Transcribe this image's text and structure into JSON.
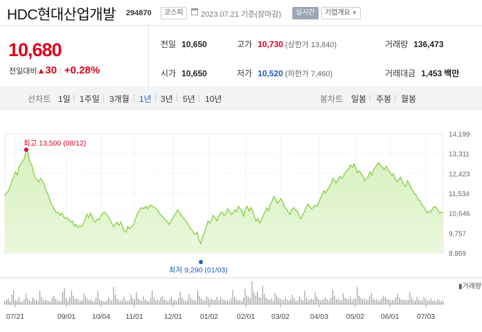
{
  "header": {
    "title": "HDC현대산업개발",
    "code": "294870",
    "market": "코스피",
    "date_text": "2023.07.21  기준(장마감)",
    "realtime_label": "실시간",
    "company_label": "기업개요"
  },
  "price": {
    "current": "10,680",
    "change_label": "전일대비",
    "change_value": "30",
    "change_percent": "+0.28%",
    "color_up": "#e0001c",
    "color_down": "#1b5ec1"
  },
  "stats": {
    "prev_close": {
      "label": "전일",
      "value": "10,650"
    },
    "high": {
      "label": "고가",
      "value": "10,730",
      "sub": "(상한가 13,840)"
    },
    "volume": {
      "label": "거래량",
      "value": "136,473"
    },
    "open": {
      "label": "시가",
      "value": "10,650"
    },
    "low": {
      "label": "저가",
      "value": "10,520",
      "sub": "(하한가 7,460)"
    },
    "amount": {
      "label": "거래대금",
      "value": "1,453",
      "unit": "백만"
    }
  },
  "nav": {
    "line_label": "선차트",
    "line_periods": [
      "1일",
      "1주일",
      "3개월",
      "1년",
      "3년",
      "5년",
      "10년"
    ],
    "active_period": "1년",
    "candle_label": "봉차트",
    "candle_periods": [
      "일봉",
      "주봉",
      "월봉"
    ]
  },
  "chart_data": {
    "type": "area",
    "y_ticks": [
      "14,199",
      "13,311",
      "12,423",
      "11,534",
      "10,646",
      "9,757",
      "8,869"
    ],
    "ylim": [
      8869,
      14199
    ],
    "x_ticks": [
      "07/21",
      "09/01",
      "10/04",
      "11/01",
      "12/01",
      "01/02",
      "02/01",
      "03/02",
      "04/03",
      "05/02",
      "06/01",
      "07/03"
    ],
    "max_annotation": "최고 13,500 (08/12)",
    "min_annotation": "최저 9,290 (01/03)",
    "volume_label": "거래량",
    "line_color": "#7fcf3f",
    "fill_color": "#eaf7dc",
    "prices": [
      11450,
      11550,
      11650,
      11850,
      12100,
      12300,
      12500,
      12350,
      12750,
      12850,
      13000,
      13100,
      13500,
      13350,
      12900,
      12850,
      12500,
      12250,
      12150,
      12050,
      12200,
      12100,
      11950,
      11700,
      11550,
      11300,
      11050,
      10950,
      10800,
      10650,
      10700,
      10550,
      10650,
      10500,
      10400,
      10450,
      10350,
      10250,
      10300,
      10050,
      10150,
      10000,
      10100,
      10050,
      10150,
      10350,
      10600,
      10450,
      10650,
      10500,
      10300,
      10250,
      10400,
      10350,
      10550,
      10650,
      10700,
      10600,
      10500,
      10350,
      10200,
      10050,
      10150,
      10250,
      10100,
      10250,
      10050,
      9850,
      9800,
      10050,
      9950,
      10050,
      10100,
      10300,
      10550,
      10700,
      10850,
      10900,
      10850,
      10950,
      10850,
      10950,
      11000,
      10950,
      10900,
      10850,
      10750,
      10600,
      10550,
      10450,
      10350,
      10300,
      10150,
      10250,
      10400,
      10550,
      10650,
      10800,
      10650,
      10550,
      10450,
      10350,
      10250,
      10150,
      9950,
      9900,
      9750,
      9700,
      9800,
      9450,
      9290,
      9550,
      9800,
      10050,
      10300,
      10200,
      10350,
      10550,
      10450,
      10300,
      10500,
      10650,
      10700,
      10550,
      10600,
      10850,
      10750,
      10600,
      10650,
      10800,
      10700,
      10950,
      10850,
      10750,
      10500,
      10850,
      10950,
      10750,
      10900,
      10750,
      10500,
      10300,
      10400,
      10200,
      10350,
      10550,
      10700,
      10900,
      10750,
      11050,
      11200,
      11400,
      11250,
      11100,
      11200,
      11300,
      11150,
      10900,
      10850,
      10700,
      10600,
      10800,
      10900,
      10800,
      10750,
      10550,
      10400,
      10550,
      10700,
      10900,
      11050,
      10950,
      10850,
      10900,
      11000,
      10950,
      11100,
      11300,
      11450,
      11650,
      11550,
      11700,
      11800,
      11950,
      12200,
      12100,
      12000,
      12150,
      12300,
      12200,
      12300,
      12450,
      12550,
      12650,
      12800,
      12700,
      12850,
      12650,
      12450,
      12550,
      12400,
      12300,
      12100,
      12200,
      12300,
      12500,
      12350,
      12600,
      12700,
      12850,
      12900,
      12750,
      12700,
      12600,
      12750,
      12600,
      12500,
      12350,
      12400,
      12200,
      12050,
      12150,
      12250,
      12050,
      11900,
      11850,
      12100,
      11950,
      11750,
      11650,
      11500,
      11450,
      11250,
      11200,
      11000,
      10950,
      10800,
      10650,
      10750,
      10700,
      10850,
      10950,
      10900,
      10800,
      10650,
      10700,
      10680
    ],
    "volumes": [
      120,
      150,
      200,
      110,
      340,
      480,
      150,
      130,
      260,
      110,
      90,
      180,
      360,
      220,
      140,
      100,
      230,
      170,
      150,
      120,
      480,
      260,
      130,
      170,
      140,
      110,
      100,
      220,
      300,
      180,
      140,
      100,
      130,
      420,
      560,
      200,
      140,
      250,
      480,
      300,
      170,
      210,
      160,
      120,
      150,
      380,
      260,
      200,
      140,
      180,
      120,
      110,
      220,
      450,
      180,
      140,
      110,
      90,
      130,
      240,
      170,
      130,
      600,
      340,
      200,
      140,
      120,
      170,
      260,
      130,
      110,
      140,
      330,
      200,
      160,
      420,
      210,
      140,
      120,
      280,
      170,
      130,
      100,
      210,
      480,
      230,
      150,
      170,
      130,
      240,
      300,
      160,
      130,
      110,
      180,
      260,
      150,
      140,
      120,
      210,
      440,
      250,
      170,
      120,
      150,
      350,
      220,
      160,
      130,
      130,
      470,
      300,
      200,
      160,
      130,
      280,
      230,
      150,
      200,
      140,
      170,
      260,
      140,
      250,
      180,
      160,
      130,
      150,
      120,
      200,
      500,
      260,
      180,
      130,
      160,
      110,
      220,
      540,
      300,
      260,
      210,
      800,
      430,
      300,
      450,
      260,
      220,
      640,
      360,
      240,
      170,
      150,
      200,
      130,
      410,
      300,
      220,
      190,
      160,
      140,
      250,
      160,
      130,
      180,
      340,
      210,
      110,
      140,
      280,
      180,
      130,
      460,
      220,
      140,
      170,
      200,
      160,
      420,
      260,
      180,
      130,
      150,
      190,
      230,
      160,
      130,
      230,
      510,
      300,
      170,
      210,
      140,
      150,
      380,
      220,
      190,
      160,
      270,
      140,
      200,
      180,
      600,
      300,
      230,
      170,
      210,
      160,
      160,
      260,
      390,
      200,
      150,
      180,
      130,
      150,
      220,
      310,
      240,
      180,
      170,
      130,
      150,
      150,
      240,
      360,
      230,
      180,
      140,
      160,
      140,
      150,
      410,
      200,
      150,
      130,
      260,
      160,
      140,
      120,
      260,
      180,
      140,
      130,
      200,
      120,
      130,
      110,
      190,
      140,
      100,
      130
    ]
  }
}
